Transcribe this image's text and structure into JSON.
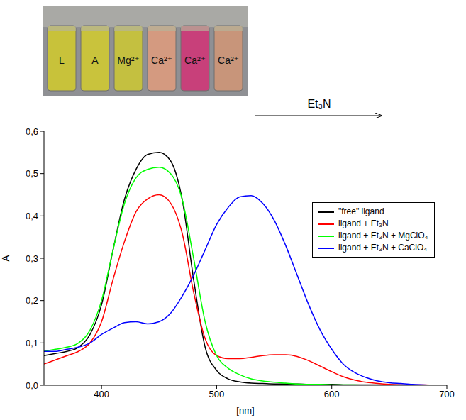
{
  "photo": {
    "labels": [
      "L",
      "A",
      "Mg²⁺",
      "Ca²⁺",
      "Ca²⁺",
      "Ca²⁺"
    ],
    "colors": [
      "#c8c23a",
      "#c9c33c",
      "#c4c040",
      "#d49a80",
      "#c8407a",
      "#c8957a"
    ],
    "arrow_label": "Et₃N"
  },
  "chart_data": {
    "type": "line",
    "x_label": "[nm]",
    "y_label": "A",
    "xlim": [
      350,
      700
    ],
    "ylim": [
      0,
      0.6
    ],
    "xticks": [
      400,
      500,
      600,
      700
    ],
    "yticks": [
      {
        "value": 0,
        "label": "0,0"
      },
      {
        "value": 0.1,
        "label": "0,1"
      },
      {
        "value": 0.2,
        "label": "0,2"
      },
      {
        "value": 0.3,
        "label": "0,3"
      },
      {
        "value": 0.4,
        "label": "0,4"
      },
      {
        "value": 0.5,
        "label": "0,5"
      },
      {
        "value": 0.6,
        "label": "0,6"
      }
    ],
    "legend": "upper right",
    "x": [
      350,
      360,
      370,
      380,
      390,
      400,
      410,
      420,
      430,
      440,
      450,
      460,
      470,
      480,
      490,
      500,
      510,
      520,
      530,
      540,
      550,
      560,
      570,
      580,
      590,
      600,
      610,
      620,
      630,
      640,
      650,
      660,
      670,
      680,
      690,
      700
    ],
    "series": [
      {
        "name": "\"free\" ligand",
        "color": "#000000",
        "values": [
          0.07,
          0.075,
          0.08,
          0.09,
          0.12,
          0.19,
          0.32,
          0.44,
          0.51,
          0.545,
          0.55,
          0.53,
          0.44,
          0.25,
          0.09,
          0.035,
          0.015,
          0.008,
          0.005,
          0.004,
          0.003,
          0.003,
          0.003,
          0.002,
          0.002,
          0.002,
          0.001,
          0.001,
          0.001,
          0.001,
          0.001,
          0.001,
          0,
          0,
          0,
          0
        ]
      },
      {
        "name": "ligand + Et₃N",
        "color": "#ff0000",
        "values": [
          0.05,
          0.06,
          0.07,
          0.08,
          0.1,
          0.15,
          0.25,
          0.34,
          0.41,
          0.44,
          0.45,
          0.43,
          0.36,
          0.22,
          0.11,
          0.07,
          0.063,
          0.063,
          0.066,
          0.07,
          0.072,
          0.072,
          0.068,
          0.058,
          0.045,
          0.032,
          0.02,
          0.012,
          0.007,
          0.004,
          0.002,
          0.001,
          0.001,
          0.001,
          0,
          0
        ]
      },
      {
        "name": "ligand + Et₃N + MgClO₄",
        "color": "#00ff00",
        "values": [
          0.08,
          0.085,
          0.09,
          0.1,
          0.13,
          0.2,
          0.32,
          0.43,
          0.49,
          0.51,
          0.515,
          0.5,
          0.44,
          0.3,
          0.15,
          0.07,
          0.04,
          0.025,
          0.015,
          0.01,
          0.007,
          0.005,
          0.003,
          0.002,
          0.002,
          0.001,
          0.001,
          0.001,
          0,
          0,
          0,
          0,
          0,
          0,
          0,
          0
        ]
      },
      {
        "name": "ligand + Et₃N + CaClO₄",
        "color": "#0000ff",
        "values": [
          0.08,
          0.08,
          0.085,
          0.09,
          0.1,
          0.12,
          0.135,
          0.148,
          0.15,
          0.145,
          0.15,
          0.17,
          0.21,
          0.26,
          0.32,
          0.38,
          0.42,
          0.445,
          0.448,
          0.43,
          0.39,
          0.33,
          0.26,
          0.19,
          0.13,
          0.085,
          0.05,
          0.03,
          0.018,
          0.01,
          0.006,
          0.004,
          0.002,
          0.001,
          0,
          0
        ]
      }
    ]
  }
}
